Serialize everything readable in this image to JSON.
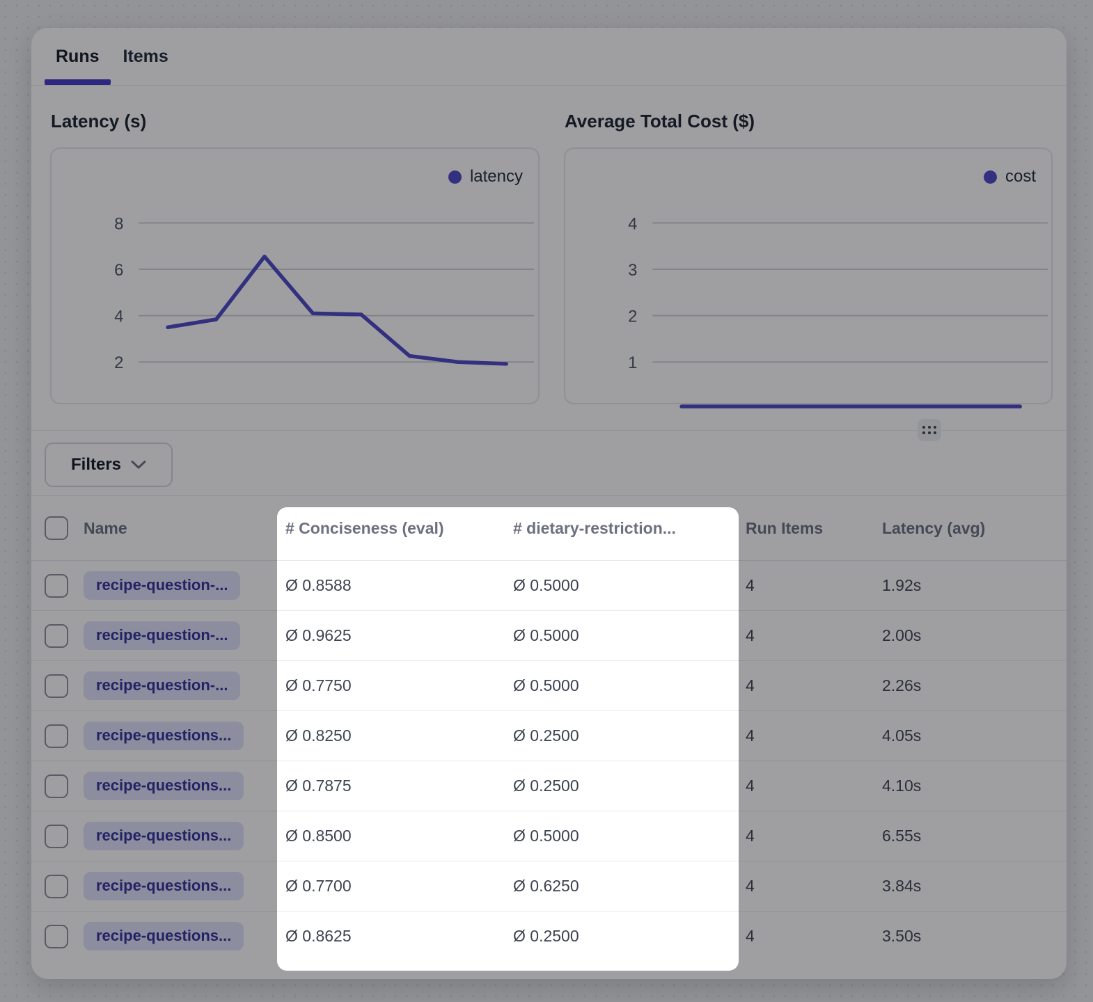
{
  "tabs": [
    {
      "label": "Runs",
      "active": true
    },
    {
      "label": "Items",
      "active": false
    }
  ],
  "chart_data": [
    {
      "type": "line",
      "title": "Latency (s)",
      "legend": [
        "latency"
      ],
      "series": [
        {
          "name": "latency",
          "values": [
            3.5,
            3.84,
            6.55,
            4.1,
            4.05,
            2.26,
            2.0,
            1.92
          ]
        }
      ],
      "x": [
        1,
        2,
        3,
        4,
        5,
        6,
        7,
        8
      ],
      "xlabel": "",
      "ylabel": "",
      "yticks": [
        2,
        4,
        6,
        8
      ],
      "ylim": [
        0,
        9.2
      ],
      "grid": true,
      "legend_position": "top-right",
      "line_color": "#4c46c7"
    },
    {
      "type": "line",
      "title": "Average Total Cost ($)",
      "legend": [
        "cost"
      ],
      "series": [
        {
          "name": "cost",
          "values": [
            0.04,
            0.04,
            0.04,
            0.04,
            0.04,
            0.04,
            0.04,
            0.04
          ]
        }
      ],
      "x": [
        1,
        2,
        3,
        4,
        5,
        6,
        7,
        8
      ],
      "xlabel": "",
      "ylabel": "",
      "yticks": [
        1,
        2,
        3,
        4
      ],
      "ylim": [
        0,
        4.6
      ],
      "grid": true,
      "legend_position": "top-right",
      "line_color": "#4c46c7"
    }
  ],
  "filters": {
    "label": "Filters",
    "icon": "chevron-down"
  },
  "grip": {
    "icon": "grip-dots"
  },
  "table": {
    "columns": [
      "Name",
      "# Conciseness (eval)",
      "# dietary-restriction...",
      "Run Items",
      "Latency (avg)"
    ],
    "rows": [
      {
        "name": "recipe-question-...",
        "conciseness": "Ø 0.8588",
        "dietary": "Ø 0.5000",
        "run_items": "4",
        "latency": "1.92s"
      },
      {
        "name": "recipe-question-...",
        "conciseness": "Ø 0.9625",
        "dietary": "Ø 0.5000",
        "run_items": "4",
        "latency": "2.00s"
      },
      {
        "name": "recipe-question-...",
        "conciseness": "Ø 0.7750",
        "dietary": "Ø 0.5000",
        "run_items": "4",
        "latency": "2.26s"
      },
      {
        "name": "recipe-questions...",
        "conciseness": "Ø 0.8250",
        "dietary": "Ø 0.2500",
        "run_items": "4",
        "latency": "4.05s"
      },
      {
        "name": "recipe-questions...",
        "conciseness": "Ø 0.7875",
        "dietary": "Ø 0.2500",
        "run_items": "4",
        "latency": "4.10s"
      },
      {
        "name": "recipe-questions...",
        "conciseness": "Ø 0.8500",
        "dietary": "Ø 0.5000",
        "run_items": "4",
        "latency": "6.55s"
      },
      {
        "name": "recipe-questions...",
        "conciseness": "Ø 0.7700",
        "dietary": "Ø 0.6250",
        "run_items": "4",
        "latency": "3.84s"
      },
      {
        "name": "recipe-questions...",
        "conciseness": "Ø 0.8625",
        "dietary": "Ø 0.2500",
        "run_items": "4",
        "latency": "3.50s"
      }
    ]
  },
  "colors": {
    "accent_line": "#4c46c7",
    "tab_underline": "#4338ca",
    "pill_bg": "#dfe1fa",
    "pill_text": "#32309b",
    "grid_line": "#cfd2d8",
    "overlay": "rgba(16,16,20,0.40)"
  }
}
